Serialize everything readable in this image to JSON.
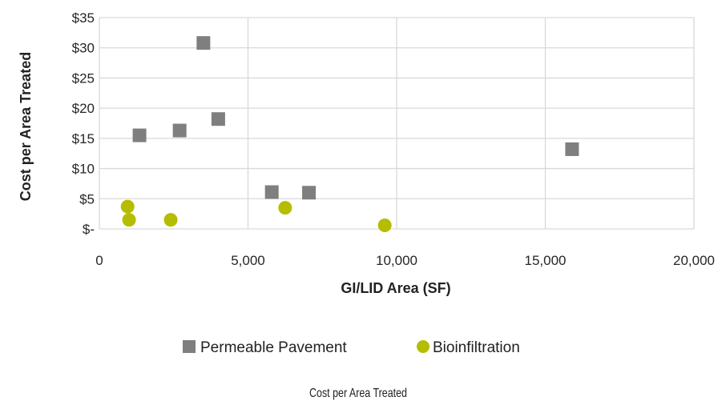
{
  "chart_data": {
    "type": "scatter",
    "xlabel": "GI/LID Area (SF)",
    "ylabel": "Cost per Area Treated",
    "xlim": [
      0,
      20000
    ],
    "ylim": [
      0,
      35
    ],
    "x_ticks": [
      0,
      5000,
      10000,
      15000,
      20000
    ],
    "x_tick_labels": [
      "0",
      "5,000",
      "10,000",
      "15,000",
      "20,000"
    ],
    "y_ticks": [
      0,
      5,
      10,
      15,
      20,
      25,
      30,
      35
    ],
    "y_tick_labels": [
      "$-",
      "$5",
      "$10",
      "$15",
      "$20",
      "$25",
      "$30",
      "$35"
    ],
    "grid": true,
    "legend_position": "bottom",
    "series": [
      {
        "name": "Permeable Pavement",
        "marker": "square",
        "color": "#7f7f7f",
        "points": [
          {
            "x": 1350,
            "y": 15.5
          },
          {
            "x": 2700,
            "y": 16.3
          },
          {
            "x": 3500,
            "y": 30.8
          },
          {
            "x": 4000,
            "y": 18.2
          },
          {
            "x": 5800,
            "y": 6.1
          },
          {
            "x": 7050,
            "y": 6.0
          },
          {
            "x": 15900,
            "y": 13.2
          }
        ]
      },
      {
        "name": "Bioinfiltration",
        "marker": "circle",
        "color": "#b5bd00",
        "points": [
          {
            "x": 950,
            "y": 3.7
          },
          {
            "x": 1000,
            "y": 1.5
          },
          {
            "x": 2400,
            "y": 1.5
          },
          {
            "x": 6250,
            "y": 3.5
          },
          {
            "x": 9600,
            "y": 0.6
          }
        ]
      }
    ],
    "caption": "Cost per Area Treated"
  }
}
